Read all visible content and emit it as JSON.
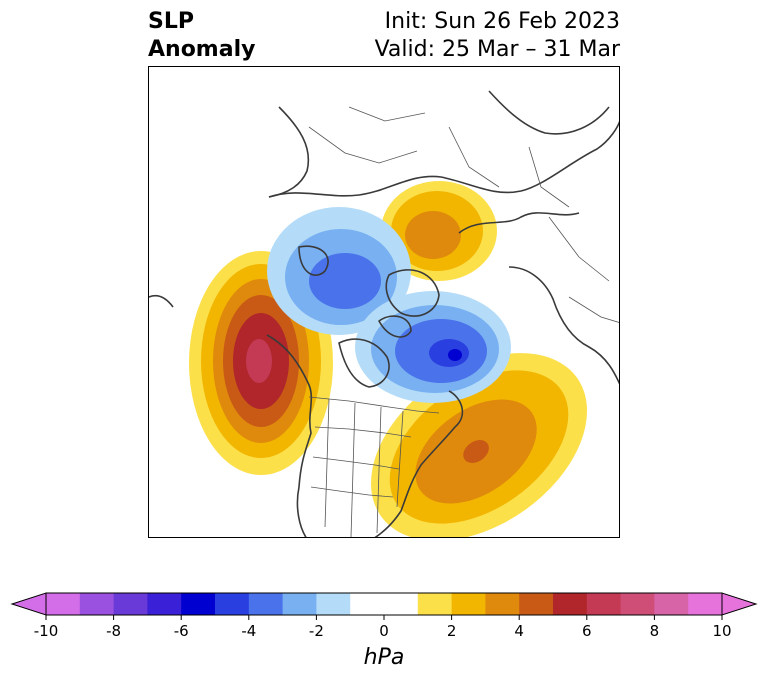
{
  "title": {
    "left_line1": "SLP",
    "left_line2": "Anomaly",
    "right_line1": "Init: Sun 26 Feb 2023",
    "right_line2": "Valid: 25 Mar – 31 Mar"
  },
  "colorbar": {
    "unit": "hPa",
    "ticks": [
      "-10",
      "-8",
      "-6",
      "-4",
      "-2",
      "0",
      "2",
      "4",
      "6",
      "8",
      "10"
    ],
    "colors": [
      "#d36ee8",
      "#9b51e0",
      "#6a3ad8",
      "#3a20d6",
      "#0000d0",
      "#2a3fe0",
      "#4a72ea",
      "#78b0f2",
      "#b4dcf8",
      "#ffffff",
      "#ffffff",
      "#fce04a",
      "#f2b600",
      "#df8a0c",
      "#c85a16",
      "#b0262a",
      "#c43a55",
      "#cf4e78",
      "#d864a8",
      "#e672dc"
    ],
    "extend": "both"
  },
  "map": {
    "projection": "north-polar-stereographic",
    "features": [
      "coastlines",
      "country-borders",
      "us-state-borders"
    ],
    "anomalies": [
      {
        "name": "north-pacific-high",
        "sign": "positive",
        "peak_hpa": 7
      },
      {
        "name": "western-atlantic-high",
        "sign": "positive",
        "peak_hpa": 5
      },
      {
        "name": "siberian-high",
        "sign": "positive",
        "peak_hpa": 4
      },
      {
        "name": "arctic-canada-low",
        "sign": "negative",
        "peak_hpa": -6
      },
      {
        "name": "arctic-ocean-low",
        "sign": "negative",
        "peak_hpa": -4
      }
    ]
  }
}
